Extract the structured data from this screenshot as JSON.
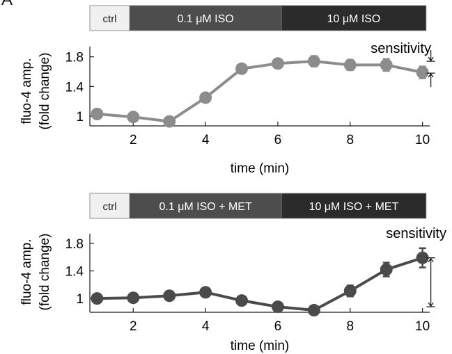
{
  "panel_letter": "A",
  "chart_data": [
    {
      "type": "line",
      "condition_bar": [
        {
          "label": "ctrl",
          "color": "#f0f0f0",
          "text_color": "#1a1a1a",
          "start": 0.8,
          "end": 1.9
        },
        {
          "label": "0.1 μM ISO",
          "color": "#4d4d4d",
          "text_color": "#ffffff",
          "start": 1.9,
          "end": 6.1
        },
        {
          "label": "10 μM  ISO",
          "color": "#2b2b2b",
          "text_color": "#ffffff",
          "start": 6.1,
          "end": 10.1
        }
      ],
      "xlabel": "time (min)",
      "ylabel": [
        "fluo-4 amp.",
        "(fold change)"
      ],
      "xlim": [
        0.8,
        10.2
      ],
      "ylim": [
        0.87,
        1.9
      ],
      "xticks": [
        2,
        4,
        6,
        8,
        10
      ],
      "yticks": [
        1,
        1.4,
        1.8
      ],
      "ytick_labels": [
        "1",
        "1.4",
        "1.8"
      ],
      "series": [
        {
          "color": "#8c8c8c",
          "x": [
            1,
            2,
            3,
            4,
            5,
            6,
            7,
            8,
            9,
            10
          ],
          "y": [
            1.03,
            0.99,
            0.93,
            1.25,
            1.64,
            1.71,
            1.74,
            1.69,
            1.69,
            1.59
          ],
          "err": [
            0,
            0,
            0,
            0,
            0,
            0,
            0.07,
            0.07,
            0.08,
            0.08
          ]
        }
      ],
      "annotation": {
        "text": "sensitivity",
        "type": "converging-arrows",
        "at": 10,
        "y_from": 1.74,
        "y_to": 1.58
      }
    },
    {
      "type": "line",
      "condition_bar": [
        {
          "label": "ctrl",
          "color": "#f0f0f0",
          "text_color": "#1a1a1a",
          "start": 0.8,
          "end": 1.9
        },
        {
          "label": "0.1 μM ISO + MET",
          "color": "#4d4d4d",
          "text_color": "#ffffff",
          "start": 1.9,
          "end": 6.1
        },
        {
          "label": "10 μM ISO + MET",
          "color": "#2b2b2b",
          "text_color": "#ffffff",
          "start": 6.1,
          "end": 10.1
        }
      ],
      "xlabel": "time (min)",
      "ylabel": [
        "fluo-4 amp.",
        "(fold change)"
      ],
      "xlim": [
        0.8,
        10.2
      ],
      "ylim": [
        0.8,
        1.9
      ],
      "xticks": [
        2,
        4,
        6,
        8,
        10
      ],
      "yticks": [
        1,
        1.4,
        1.8
      ],
      "ytick_labels": [
        "1",
        "1.4",
        "1.8"
      ],
      "series": [
        {
          "color": "#4a4a4a",
          "x": [
            1,
            2,
            3,
            4,
            5,
            6,
            7,
            8,
            9,
            10
          ],
          "y": [
            1.0,
            1.01,
            1.04,
            1.09,
            0.97,
            0.88,
            0.83,
            1.11,
            1.42,
            1.59
          ],
          "err": [
            0,
            0,
            0,
            0,
            0,
            0,
            0,
            0.08,
            0.1,
            0.14
          ]
        }
      ],
      "annotation": {
        "text": "sensitivity",
        "type": "double-arrow",
        "at": 10,
        "y_from": 1.59,
        "y_to": 0.88
      }
    }
  ]
}
